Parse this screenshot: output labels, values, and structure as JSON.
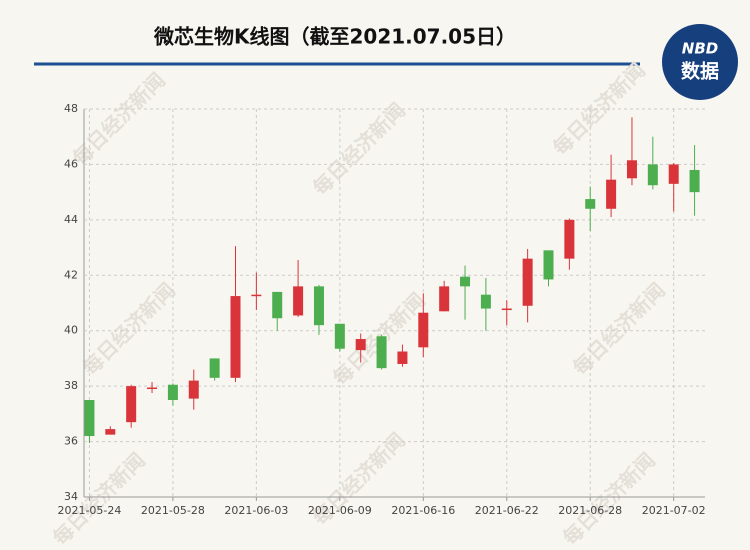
{
  "title": "微芯生物K线图（截至2021.07.05日）",
  "logo": {
    "line1": "NBD",
    "line2": "数据"
  },
  "watermark": "每日经济新闻",
  "chart_data": {
    "type": "candlestick",
    "categories": [
      "2021-05-24",
      null,
      null,
      null,
      "2021-05-28",
      null,
      null,
      null,
      "2021-06-03",
      null,
      null,
      null,
      "2021-06-09",
      null,
      null,
      null,
      "2021-06-16",
      null,
      null,
      null,
      "2021-06-22",
      null,
      null,
      null,
      "2021-06-28",
      null,
      null,
      null,
      "2021-07-02",
      null
    ],
    "open": [
      37.5,
      36.25,
      36.7,
      37.9,
      38.05,
      37.55,
      39.0,
      38.3,
      41.25,
      41.4,
      40.55,
      41.6,
      40.25,
      39.3,
      39.8,
      38.8,
      39.4,
      40.7,
      41.95,
      41.3,
      40.75,
      40.9,
      42.9,
      42.6,
      44.75,
      44.4,
      45.5,
      46.0,
      45.3,
      45.8
    ],
    "high": [
      37.5,
      36.55,
      38.05,
      38.15,
      38.1,
      38.6,
      39.0,
      43.05,
      42.1,
      41.4,
      42.55,
      41.65,
      40.25,
      39.9,
      39.85,
      39.5,
      41.35,
      41.8,
      42.35,
      41.9,
      41.1,
      42.95,
      42.9,
      44.05,
      45.2,
      46.35,
      47.7,
      47.0,
      46.05,
      46.7
    ],
    "low": [
      35.95,
      36.25,
      36.5,
      37.75,
      37.3,
      37.15,
      38.2,
      38.15,
      40.75,
      40.0,
      40.5,
      39.85,
      39.25,
      38.85,
      38.6,
      38.7,
      39.05,
      40.7,
      40.4,
      40.0,
      40.2,
      40.3,
      41.6,
      42.2,
      43.6,
      44.1,
      45.25,
      45.1,
      44.3,
      44.15
    ],
    "close": [
      36.2,
      36.45,
      38.0,
      37.95,
      37.5,
      38.2,
      38.3,
      41.25,
      41.3,
      40.45,
      41.6,
      40.2,
      39.35,
      39.7,
      38.65,
      39.25,
      40.65,
      41.6,
      41.6,
      40.8,
      40.8,
      42.6,
      41.85,
      44.0,
      44.4,
      45.45,
      46.15,
      45.25,
      46.0,
      45.0
    ],
    "up_color": "#d9343a",
    "down_color": "#4cae4f",
    "ylim": [
      34,
      48
    ],
    "yticks": [
      34,
      36,
      38,
      40,
      42,
      44,
      46,
      48
    ],
    "grid": true
  }
}
